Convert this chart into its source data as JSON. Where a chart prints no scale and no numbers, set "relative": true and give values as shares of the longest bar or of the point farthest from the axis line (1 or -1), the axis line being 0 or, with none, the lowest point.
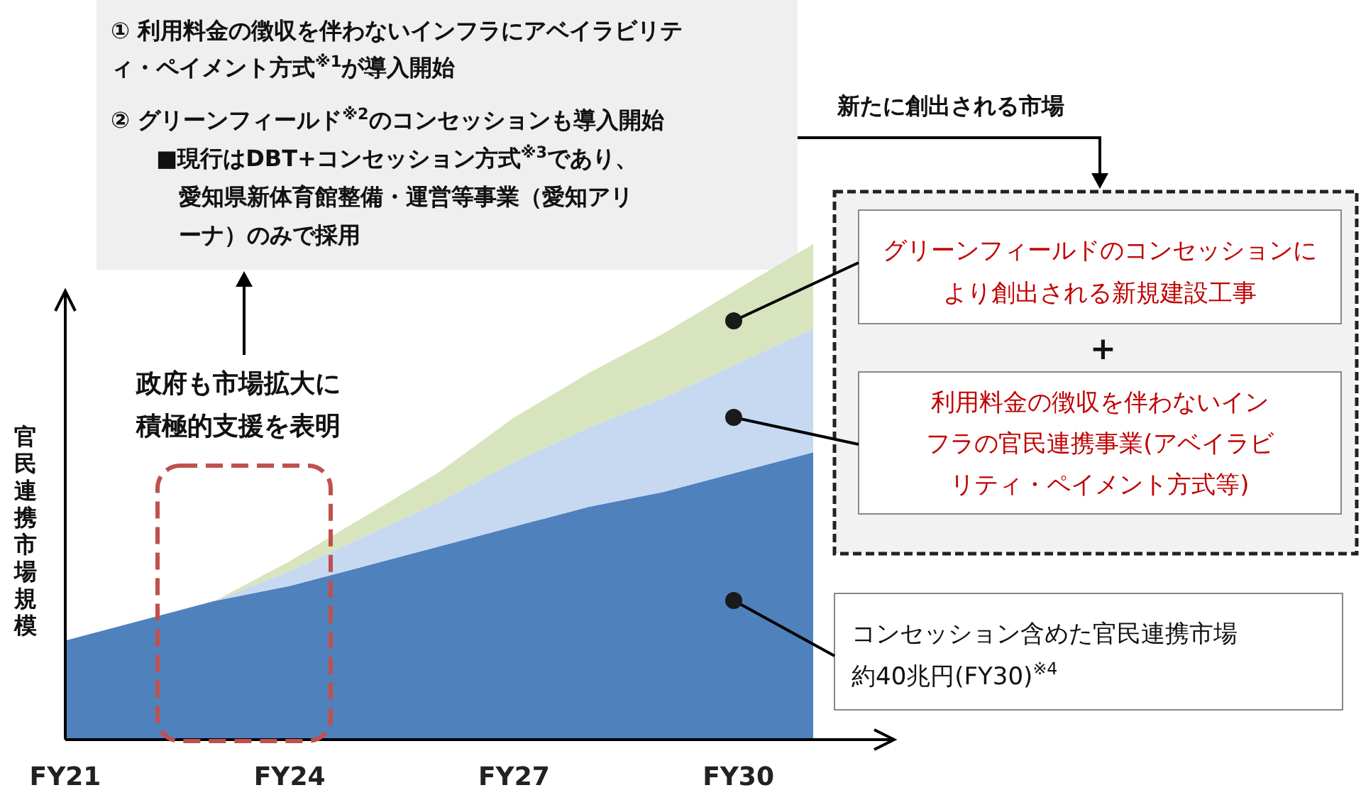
{
  "chart_data": {
    "type": "area",
    "stacked": true,
    "relative": true,
    "categories": [
      "FY21",
      null,
      null,
      "FY24",
      null,
      null,
      "FY27",
      null,
      null,
      "FY30",
      null
    ],
    "ylabel": "官民連携市場規模",
    "series": [
      {
        "color": "#4f81bd",
        "values": [
          0.2,
          0.24,
          0.28,
          0.31,
          0.35,
          0.39,
          0.43,
          0.47,
          0.5,
          0.54,
          0.58
        ]
      },
      {
        "color": "#c6d9f1",
        "values": [
          0,
          0,
          0,
          0.03,
          0.06,
          0.09,
          0.13,
          0.16,
          0.19,
          0.22,
          0.25
        ]
      },
      {
        "color": "#d7e4bd",
        "values": [
          0,
          0,
          0,
          0.02,
          0.04,
          0.06,
          0.09,
          0.11,
          0.13,
          0.15,
          0.17
        ]
      }
    ],
    "annotations": [
      "① 利用料金の徴収を伴わないインフラにアベイラビリティ・ペイメント方式$^{※1}$が導入開始",
      "② グリーンフィールド$^{※2}$のコンセッションも導入開始",
      "■現行はDBT+コンセッション方式$^{※3}$であり、愛知県新体育館整備・運営等事業（愛知アリーナ）のみで採用",
      "政府も市場拡大に積極的支援を表明",
      "新たに創出される市場",
      "グリーンフィールドのコンセッションにより創出される新規建設工事",
      "+",
      "利用料金の徴収を伴わないインフラの官民連携事業(アベイラビリティ・ペイメント方式等)",
      "コンセッション含めた官民連携市場約40兆円(FY30)$^{※4}$"
    ]
  }
}
